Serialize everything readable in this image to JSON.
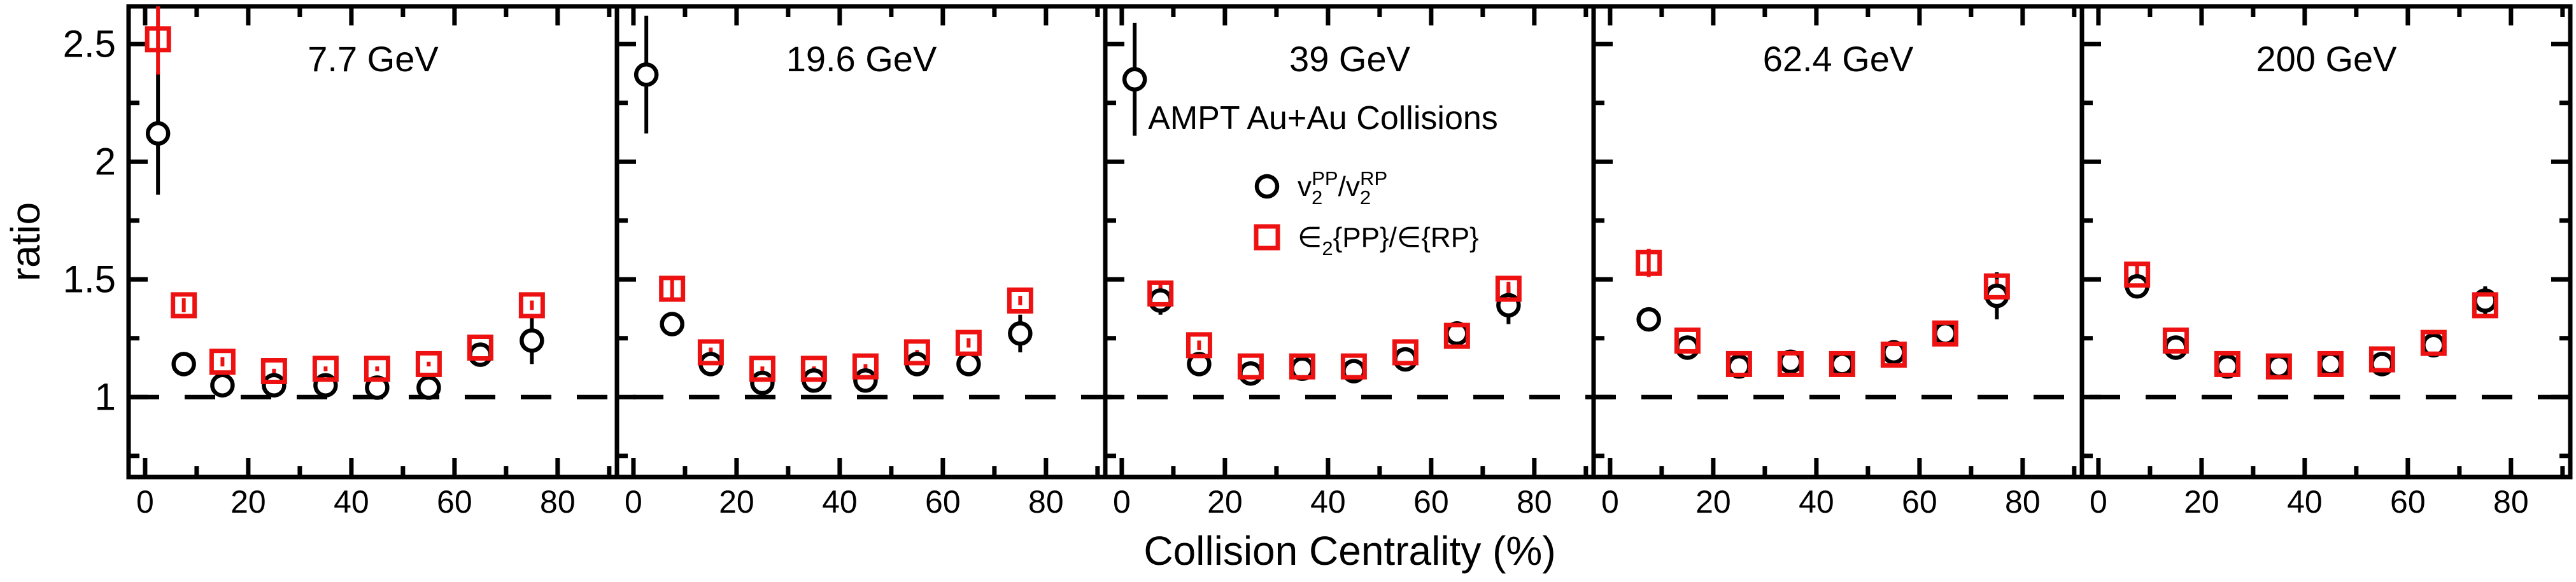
{
  "chart_data": {
    "type": "scatter",
    "title": "",
    "xlabel": "Collision Centrality (%)",
    "ylabel": "ratio",
    "annotation": "AMPT Au+Au Collisions",
    "grid": "off",
    "dashed_reference_line_y": 1,
    "ylim": [
      0.66,
      2.66
    ],
    "xlim": [
      -3.2,
      91.5
    ],
    "yticks_major": [
      1,
      1.5,
      2,
      2.5
    ],
    "ytick_labels": [
      "1",
      "1.5",
      "2",
      "2.5"
    ],
    "yticks_minor": [
      0.75,
      1.25,
      1.75,
      2.25
    ],
    "xticks_major": [
      0,
      20,
      40,
      60,
      80
    ],
    "xtick_labels": [
      "0",
      "20",
      "40",
      "60",
      "80"
    ],
    "xticks_minor": [
      10,
      30,
      50,
      70,
      90
    ],
    "colors": {
      "circle_series": "#000000",
      "square_series": "#ee1111",
      "background": "#ffffff"
    },
    "legend": {
      "position": "inside panel 3, under annotation",
      "entries": [
        {
          "marker": "circle",
          "color": "#000000",
          "label": "v2^PP / v2^RP",
          "segments": [
            {
              "t": "v",
              "s": "n"
            },
            {
              "t": "2",
              "s": "sub"
            },
            {
              "t": "PP",
              "s": "sup",
              "stack": true
            },
            {
              "t": "/v",
              "s": "n"
            },
            {
              "t": "2",
              "s": "sub"
            },
            {
              "t": "RP",
              "s": "sup",
              "stack": true
            }
          ]
        },
        {
          "marker": "square",
          "color": "#ee1111",
          "label": "∈2{PP}/∈{RP}",
          "segments": [
            {
              "t": "∈",
              "s": "n"
            },
            {
              "t": "2",
              "s": "sub"
            },
            {
              "t": "{PP}/",
              "s": "n"
            },
            {
              "t": "∈",
              "s": "n"
            },
            {
              "t": "{RP}",
              "s": "n"
            }
          ]
        }
      ]
    },
    "panels": [
      {
        "title": "7.7 GeV",
        "circles": {
          "x": [
            2.5,
            7.5,
            15,
            25,
            35,
            45,
            55,
            65,
            75
          ],
          "y": [
            2.12,
            1.14,
            1.05,
            1.05,
            1.05,
            1.04,
            1.04,
            1.18,
            1.24
          ],
          "yerr": [
            0.26,
            0.02,
            0.02,
            0.01,
            0.01,
            0.01,
            0.01,
            0.03,
            0.1
          ]
        },
        "squares": {
          "x": [
            2.5,
            7.5,
            15,
            25,
            35,
            45,
            55,
            65,
            75
          ],
          "y": [
            2.52,
            1.39,
            1.15,
            1.11,
            1.12,
            1.12,
            1.14,
            1.21,
            1.39
          ],
          "yerr": [
            0.15,
            0.03,
            0.02,
            0.01,
            0.01,
            0.01,
            0.01,
            0.02,
            0.02
          ]
        }
      },
      {
        "title": "19.6 GeV",
        "circles": {
          "x": [
            2.5,
            7.5,
            15,
            25,
            35,
            45,
            55,
            65,
            75
          ],
          "y": [
            2.37,
            1.31,
            1.14,
            1.06,
            1.07,
            1.07,
            1.14,
            1.14,
            1.27
          ],
          "yerr": [
            0.25,
            0.04,
            0.02,
            0.01,
            0.01,
            0.01,
            0.02,
            0.02,
            0.08
          ]
        },
        "squares": {
          "x": [
            7.5,
            15,
            25,
            35,
            45,
            55,
            65,
            75
          ],
          "y": [
            1.46,
            1.19,
            1.12,
            1.12,
            1.13,
            1.19,
            1.23,
            1.41
          ],
          "yerr": [
            0.04,
            0.02,
            0.01,
            0.01,
            0.01,
            0.01,
            0.02,
            0.02
          ]
        }
      },
      {
        "title": "39 GeV",
        "circles": {
          "x": [
            2.5,
            7.5,
            15,
            25,
            35,
            45,
            55,
            65,
            75
          ],
          "y": [
            2.35,
            1.41,
            1.14,
            1.1,
            1.12,
            1.11,
            1.16,
            1.27,
            1.39
          ],
          "yerr": [
            0.24,
            0.06,
            0.02,
            0.01,
            0.01,
            0.01,
            0.01,
            0.02,
            0.08
          ]
        },
        "squares": {
          "x": [
            7.5,
            15,
            25,
            35,
            45,
            55,
            65,
            75
          ],
          "y": [
            1.44,
            1.22,
            1.13,
            1.13,
            1.13,
            1.19,
            1.26,
            1.46
          ],
          "yerr": [
            0.05,
            0.02,
            0.01,
            0.01,
            0.01,
            0.01,
            0.02,
            0.03
          ]
        }
      },
      {
        "title": "62.4 GeV",
        "circles": {
          "x": [
            7.5,
            15,
            25,
            35,
            45,
            55,
            65,
            75
          ],
          "y": [
            1.33,
            1.21,
            1.13,
            1.15,
            1.14,
            1.19,
            1.27,
            1.43
          ],
          "yerr": [
            0.05,
            0.03,
            0.01,
            0.01,
            0.01,
            0.01,
            0.02,
            0.1
          ]
        },
        "squares": {
          "x": [
            7.5,
            15,
            25,
            35,
            45,
            55,
            65,
            75
          ],
          "y": [
            1.57,
            1.24,
            1.14,
            1.14,
            1.14,
            1.18,
            1.27,
            1.47
          ],
          "yerr": [
            0.06,
            0.02,
            0.01,
            0.01,
            0.01,
            0.01,
            0.02,
            0.03
          ]
        }
      },
      {
        "title": "200 GeV",
        "circles": {
          "x": [
            7.5,
            15,
            25,
            35,
            45,
            55,
            65,
            75
          ],
          "y": [
            1.47,
            1.21,
            1.13,
            1.13,
            1.14,
            1.14,
            1.22,
            1.41
          ],
          "yerr": [
            0.04,
            0.02,
            0.01,
            0.01,
            0.01,
            0.01,
            0.02,
            0.06
          ]
        },
        "squares": {
          "x": [
            7.5,
            15,
            25,
            35,
            45,
            55,
            65,
            75
          ],
          "y": [
            1.52,
            1.24,
            1.14,
            1.13,
            1.14,
            1.16,
            1.23,
            1.39
          ],
          "yerr": [
            0.05,
            0.02,
            0.01,
            0.01,
            0.01,
            0.01,
            0.02,
            0.03
          ]
        }
      }
    ]
  }
}
